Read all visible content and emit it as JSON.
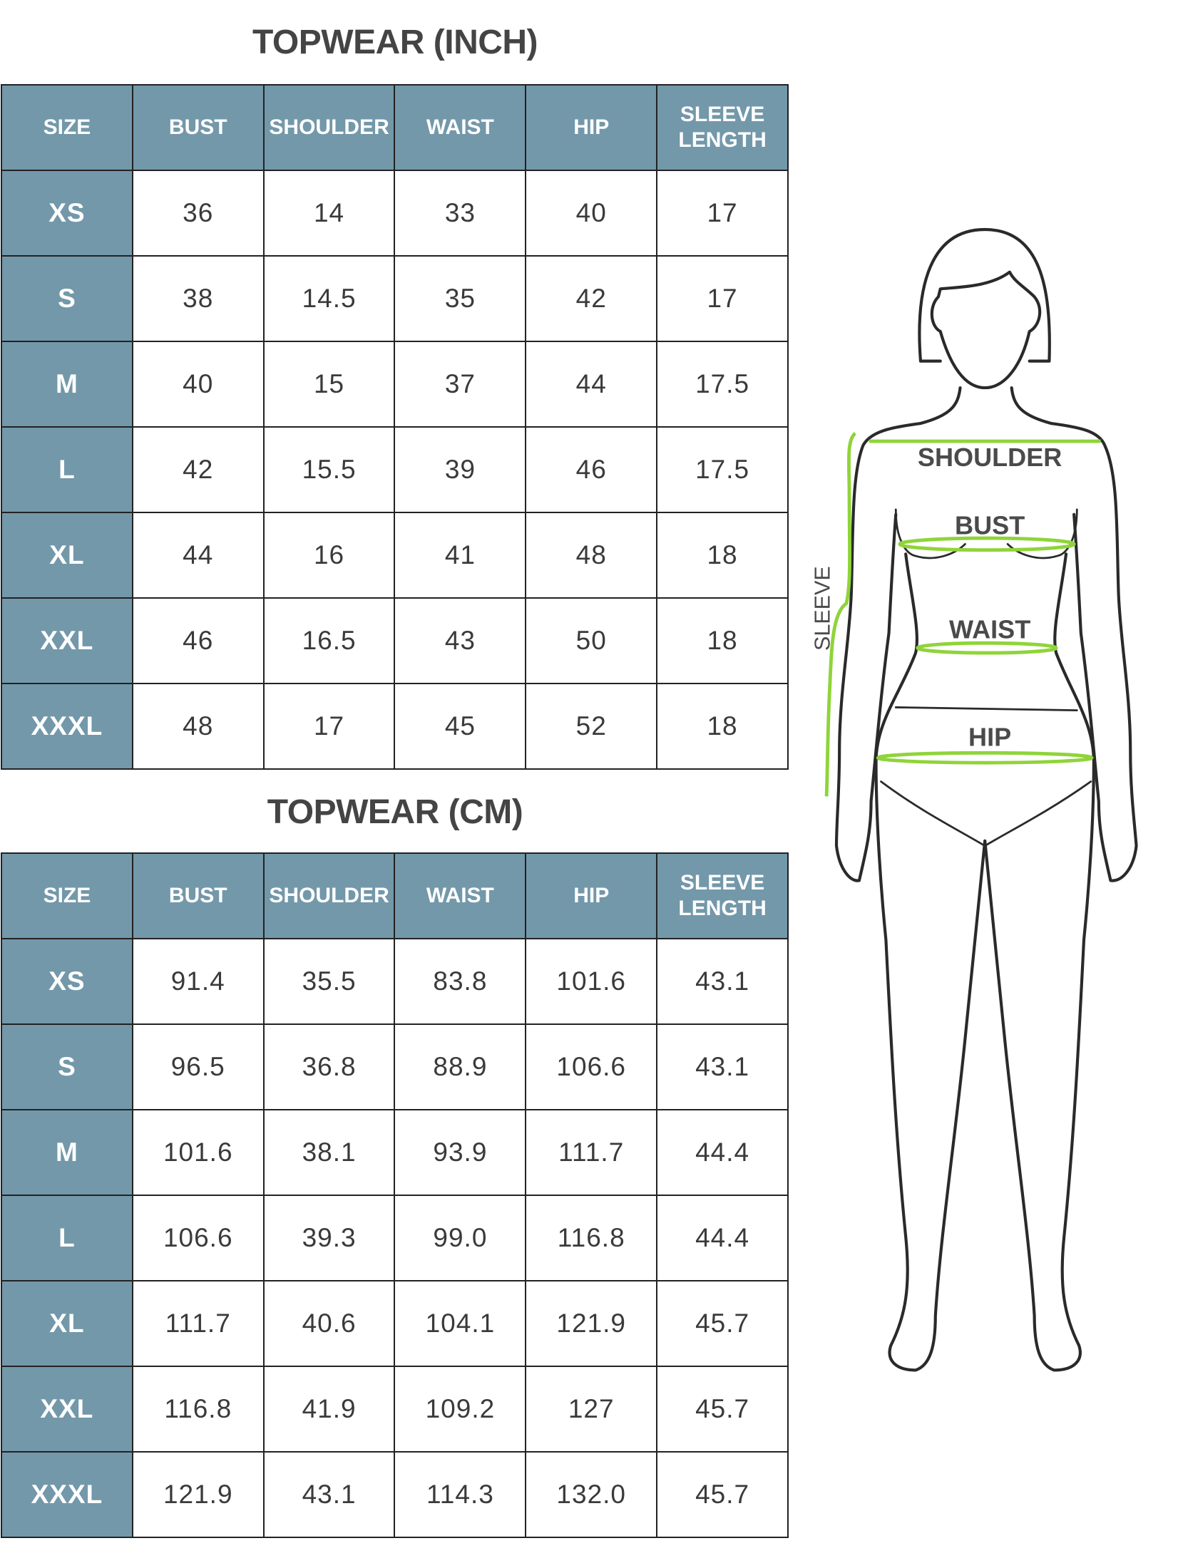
{
  "inch_table": {
    "title": "TOPWEAR (INCH)",
    "headers": [
      "SIZE",
      "BUST",
      "SHOULDER",
      "WAIST",
      "HIP",
      "SLEEVE LENGTH"
    ],
    "rows": [
      [
        "XS",
        "36",
        "14",
        "33",
        "40",
        "17"
      ],
      [
        "S",
        "38",
        "14.5",
        "35",
        "42",
        "17"
      ],
      [
        "M",
        "40",
        "15",
        "37",
        "44",
        "17.5"
      ],
      [
        "L",
        "42",
        "15.5",
        "39",
        "46",
        "17.5"
      ],
      [
        "XL",
        "44",
        "16",
        "41",
        "48",
        "18"
      ],
      [
        "XXL",
        "46",
        "16.5",
        "43",
        "50",
        "18"
      ],
      [
        "XXXL",
        "48",
        "17",
        "45",
        "52",
        "18"
      ]
    ]
  },
  "cm_table": {
    "title": "TOPWEAR (CM)",
    "headers": [
      "SIZE",
      "BUST",
      "SHOULDER",
      "WAIST",
      "HIP",
      "SLEEVE LENGTH"
    ],
    "rows": [
      [
        "XS",
        "91.4",
        "35.5",
        "83.8",
        "101.6",
        "43.1"
      ],
      [
        "S",
        "96.5",
        "36.8",
        "88.9",
        "106.6",
        "43.1"
      ],
      [
        "M",
        "101.6",
        "38.1",
        "93.9",
        "111.7",
        "44.4"
      ],
      [
        "L",
        "106.6",
        "39.3",
        "99.0",
        "116.8",
        "44.4"
      ],
      [
        "XL",
        "111.7",
        "40.6",
        "104.1",
        "121.9",
        "45.7"
      ],
      [
        "XXL",
        "116.8",
        "41.9",
        "109.2",
        "127",
        "45.7"
      ],
      [
        "XXXL",
        "121.9",
        "43.1",
        "114.3",
        "132.0",
        "45.7"
      ]
    ]
  },
  "figure": {
    "labels": {
      "shoulder": "SHOULDER",
      "bust": "BUST",
      "waist": "WAIST",
      "hip": "HIP",
      "sleeve": "SLEEVE"
    },
    "colors": {
      "header_bg": "#7398aa",
      "measure_line": "#8fd43a",
      "outline": "#2a2a2a"
    }
  }
}
